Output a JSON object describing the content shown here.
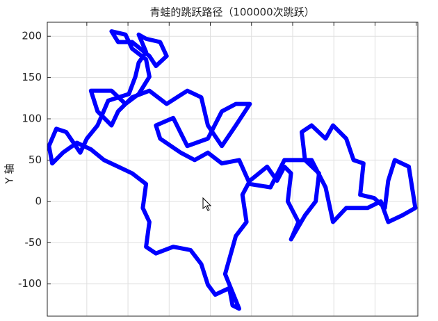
{
  "chart_data": {
    "type": "line",
    "title": "青蛙的跳跃路径（100000次跳跃）",
    "y_label": "Y 轴",
    "x": [
      -78,
      -82,
      -74,
      -78,
      -66,
      -45,
      -24,
      -11,
      -3,
      6,
      23,
      27,
      35,
      18,
      31,
      44,
      39,
      48,
      69,
      81,
      90,
      98,
      94,
      107,
      98,
      115,
      128,
      132,
      115,
      111,
      123,
      140,
      149,
      165,
      174,
      186,
      182,
      199,
      212,
      216,
      224,
      241,
      249,
      233,
      216,
      207,
      191,
      165,
      149,
      140,
      123,
      90,
      73,
      48,
      35,
      14,
      -3,
      -19,
      -36,
      -61,
      -66,
      -45,
      -28,
      -3,
      14,
      31,
      48,
      31,
      14,
      -3,
      -11,
      -28,
      -53,
      -74,
      -95,
      -112,
      -120,
      -137,
      -145,
      -120,
      -103,
      -87,
      -74,
      -78,
      -95,
      -103,
      -120,
      -112,
      -95,
      -74,
      -66,
      -53,
      -61,
      -78,
      -87,
      -78,
      -87,
      -91,
      -99,
      -124,
      -137,
      -150,
      -158,
      -175,
      -187,
      -196,
      -192,
      -179,
      -162,
      -145,
      -129,
      -112,
      -95,
      -78
    ],
    "series": [
      {
        "color": "#0000ff",
        "values": [
          21,
          -8,
          -25,
          -55,
          -63,
          -55,
          -59,
          -76,
          -101,
          -113,
          -105,
          -126,
          -130,
          -88,
          -42,
          -25,
          8,
          25,
          42,
          25,
          42,
          34,
          0,
          -25,
          -46,
          -17,
          0,
          34,
          50,
          84,
          92,
          76,
          92,
          76,
          50,
          46,
          8,
          4,
          -8,
          25,
          50,
          42,
          -8,
          -17,
          -25,
          0,
          -8,
          -8,
          -25,
          17,
          50,
          50,
          17,
          21,
          50,
          46,
          59,
          50,
          59,
          76,
          92,
          101,
          67,
          76,
          109,
          118,
          118,
          92,
          67,
          92,
          126,
          134,
          118,
          134,
          126,
          109,
          92,
          109,
          134,
          134,
          118,
          130,
          151,
          172,
          185,
          202,
          206,
          193,
          193,
          176,
          164,
          176,
          193,
          197,
          202,
          181,
          168,
          151,
          130,
          122,
          92,
          76,
          59,
          84,
          88,
          67,
          46,
          59,
          71,
          63,
          50,
          42,
          34,
          21
        ]
      }
    ],
    "xlim": [
      -198,
      252
    ],
    "ylim": [
      -139,
      217
    ],
    "xticks": [
      -150,
      -100,
      -50,
      0,
      50,
      100,
      150,
      200,
      250
    ],
    "yticks": [
      -100,
      -50,
      0,
      50,
      100,
      150,
      200
    ],
    "grid": true
  }
}
